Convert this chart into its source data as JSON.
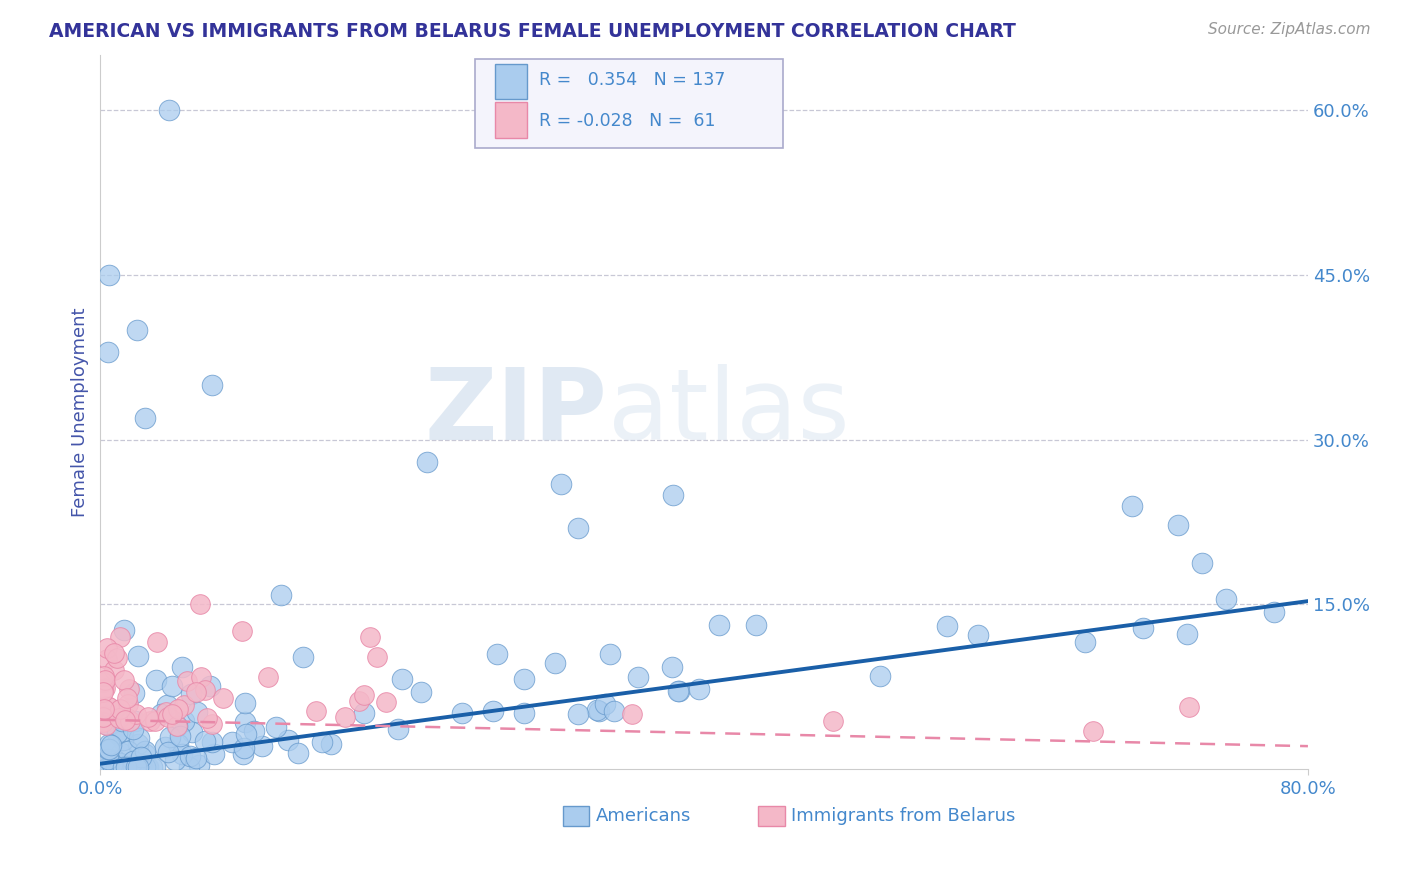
{
  "title": "AMERICAN VS IMMIGRANTS FROM BELARUS FEMALE UNEMPLOYMENT CORRELATION CHART",
  "source_text": "Source: ZipAtlas.com",
  "ylabel": "Female Unemployment",
  "xlim": [
    0,
    0.8
  ],
  "ylim": [
    0,
    0.65
  ],
  "ytick_labels_right": [
    "15.0%",
    "30.0%",
    "45.0%",
    "60.0%"
  ],
  "ytick_positions_right": [
    0.15,
    0.3,
    0.45,
    0.6
  ],
  "r_american": 0.354,
  "n_american": 137,
  "r_belarus": -0.028,
  "n_belarus": 61,
  "american_color": "#aaccee",
  "american_edge": "#6699cc",
  "american_line_color": "#1a5fa8",
  "belarus_color": "#f4b8c8",
  "belarus_edge": "#e888a8",
  "belarus_line_color": "#e888a8",
  "watermark_zip": "ZIP",
  "watermark_atlas": "atlas",
  "background_color": "#ffffff",
  "grid_color": "#bbbbcc",
  "title_color": "#333399",
  "axis_label_color": "#4455aa",
  "tick_color": "#4488cc"
}
